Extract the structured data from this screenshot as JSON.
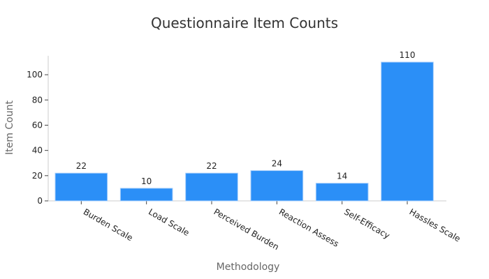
{
  "chart_data": {
    "type": "bar",
    "title": "Questionnaire Item Counts",
    "xlabel": "Methodology",
    "ylabel": "Item Count",
    "categories": [
      "Burden Scale",
      "Load Scale",
      "Perceived Burden",
      "Reaction Assess",
      "Self-Efficacy",
      "Hassles Scale"
    ],
    "values": [
      22,
      10,
      22,
      24,
      14,
      110
    ],
    "ylim": [
      0,
      115
    ],
    "yticks": [
      0,
      20,
      40,
      60,
      80,
      100
    ],
    "bar_color": "#2b8ff7",
    "grid": false,
    "legend": "none"
  }
}
